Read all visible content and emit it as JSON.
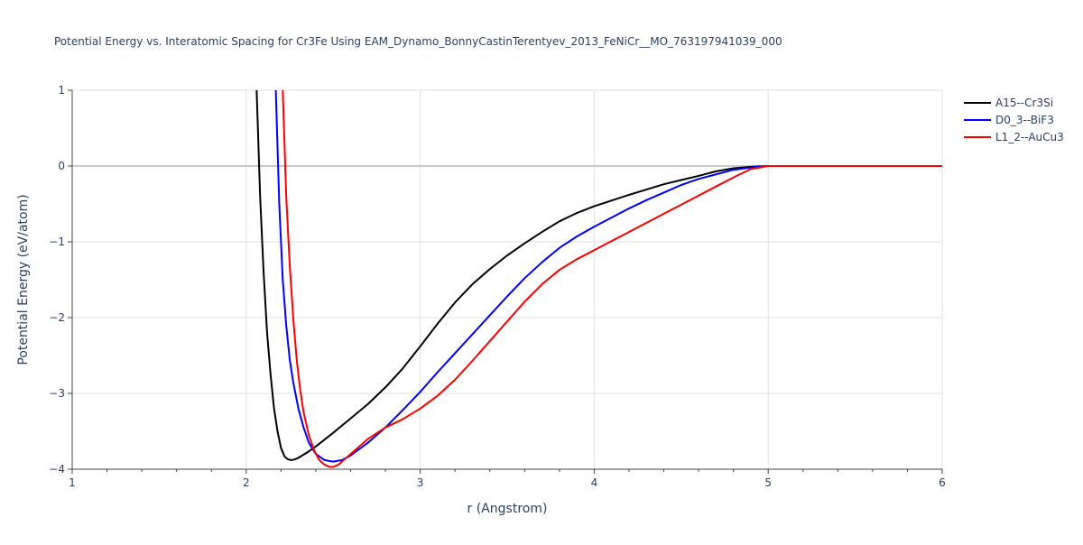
{
  "chart_data": {
    "type": "line",
    "title": "Potential Energy vs. Interatomic Spacing for Cr3Fe Using EAM_Dynamo_BonnyCastinTerentyev_2013_FeNiCr__MO_763197941039_000",
    "xlabel": "r (Angstrom)",
    "ylabel": "Potential Energy (eV/atom)",
    "xlim": [
      1,
      6
    ],
    "ylim": [
      -4,
      1
    ],
    "x_ticks": [
      1,
      2,
      3,
      4,
      5,
      6
    ],
    "y_ticks": [
      1,
      0,
      -1,
      -2,
      -3,
      -4
    ],
    "y_tick_labels": [
      "1",
      "0",
      "−1",
      "−2",
      "−3",
      "−4"
    ],
    "grid": true,
    "legend_position": "top-right",
    "series": [
      {
        "name": "A15--Cr3Si",
        "color": "#000000",
        "x": [
          2.06,
          2.08,
          2.1,
          2.12,
          2.14,
          2.16,
          2.18,
          2.2,
          2.22,
          2.24,
          2.26,
          2.28,
          2.3,
          2.35,
          2.4,
          2.5,
          2.6,
          2.7,
          2.8,
          2.9,
          3.0,
          3.1,
          3.2,
          3.3,
          3.4,
          3.5,
          3.6,
          3.7,
          3.8,
          3.9,
          4.0,
          4.2,
          4.4,
          4.6,
          4.7,
          4.8,
          4.9,
          5.0,
          5.2,
          5.5,
          6.0
        ],
        "y": [
          1.0,
          -0.4,
          -1.4,
          -2.2,
          -2.75,
          -3.2,
          -3.5,
          -3.72,
          -3.83,
          -3.87,
          -3.88,
          -3.87,
          -3.85,
          -3.78,
          -3.7,
          -3.52,
          -3.33,
          -3.14,
          -2.92,
          -2.67,
          -2.38,
          -2.08,
          -1.8,
          -1.56,
          -1.36,
          -1.18,
          -1.02,
          -0.87,
          -0.73,
          -0.62,
          -0.53,
          -0.38,
          -0.24,
          -0.13,
          -0.07,
          -0.03,
          -0.01,
          0.0,
          0.0,
          0.0,
          0.0
        ]
      },
      {
        "name": "D0_3--BiF3",
        "color": "#0000ff",
        "x": [
          2.17,
          2.19,
          2.21,
          2.23,
          2.25,
          2.27,
          2.3,
          2.33,
          2.36,
          2.4,
          2.45,
          2.5,
          2.55,
          2.6,
          2.7,
          2.8,
          2.9,
          3.0,
          3.1,
          3.2,
          3.3,
          3.4,
          3.5,
          3.6,
          3.7,
          3.8,
          3.9,
          4.0,
          4.1,
          4.2,
          4.3,
          4.4,
          4.5,
          4.6,
          4.7,
          4.8,
          4.9,
          5.0,
          5.2,
          5.5,
          6.0
        ],
        "y": [
          1.0,
          -0.5,
          -1.5,
          -2.1,
          -2.55,
          -2.85,
          -3.2,
          -3.45,
          -3.65,
          -3.8,
          -3.88,
          -3.9,
          -3.88,
          -3.82,
          -3.65,
          -3.45,
          -3.22,
          -2.98,
          -2.72,
          -2.47,
          -2.22,
          -1.97,
          -1.72,
          -1.48,
          -1.27,
          -1.08,
          -0.93,
          -0.8,
          -0.68,
          -0.56,
          -0.45,
          -0.35,
          -0.25,
          -0.17,
          -0.11,
          -0.05,
          -0.02,
          0.0,
          0.0,
          0.0,
          0.0
        ]
      },
      {
        "name": "L1_2--AuCu3",
        "color": "#ff0000",
        "x": [
          2.21,
          2.23,
          2.25,
          2.27,
          2.29,
          2.31,
          2.33,
          2.36,
          2.39,
          2.42,
          2.45,
          2.48,
          2.5,
          2.53,
          2.56,
          2.6,
          2.7,
          2.8,
          2.9,
          3.0,
          3.1,
          3.2,
          3.3,
          3.4,
          3.5,
          3.6,
          3.7,
          3.8,
          3.9,
          4.0,
          4.1,
          4.2,
          4.3,
          4.4,
          4.5,
          4.6,
          4.7,
          4.8,
          4.9,
          5.0,
          5.2,
          5.5,
          6.0
        ],
        "y": [
          1.0,
          -0.4,
          -1.3,
          -2.0,
          -2.55,
          -2.95,
          -3.25,
          -3.55,
          -3.75,
          -3.88,
          -3.94,
          -3.97,
          -3.97,
          -3.94,
          -3.88,
          -3.8,
          -3.6,
          -3.45,
          -3.34,
          -3.2,
          -3.03,
          -2.82,
          -2.57,
          -2.31,
          -2.05,
          -1.79,
          -1.56,
          -1.37,
          -1.23,
          -1.11,
          -0.99,
          -0.87,
          -0.75,
          -0.63,
          -0.51,
          -0.39,
          -0.27,
          -0.15,
          -0.04,
          0.0,
          0.0,
          0.0,
          0.0
        ]
      }
    ]
  }
}
